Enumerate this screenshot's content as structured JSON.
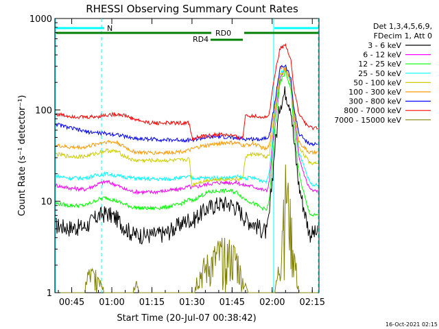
{
  "chart_data": {
    "type": "line",
    "title": "RHESSI Observing Summary Count Rates",
    "xlabel": "Start Time (20-Jul-07 00:38:42)",
    "ylabel": "Count Rate (s⁻¹ detector⁻¹)",
    "y_scale": "log",
    "ylim": [
      1,
      1000
    ],
    "xlim_minutes": [
      38.7,
      137.5
    ],
    "x_ticks": [
      {
        "label": "00:45",
        "min": 45
      },
      {
        "label": "01:00",
        "min": 60
      },
      {
        "label": "01:15",
        "min": 75
      },
      {
        "label": "01:30",
        "min": 90
      },
      {
        "label": "01:45",
        "min": 105
      },
      {
        "label": "02:00",
        "min": 120
      },
      {
        "label": "02:15",
        "min": 135
      }
    ],
    "y_ticks": [
      {
        "label": "1",
        "value": 1
      },
      {
        "label": "10",
        "value": 10
      },
      {
        "label": "100",
        "value": 100
      },
      {
        "label": "1000",
        "value": 1000
      }
    ],
    "legend_header": [
      "Det 1,3,4,5,6,9,",
      "FDecim 1, Att 0"
    ],
    "legend_position": "right",
    "series": [
      {
        "name": "3 - 6 keV",
        "color": "#000000",
        "x": [
          39,
          44,
          50,
          55,
          58,
          62,
          65,
          68,
          72,
          75,
          80,
          85,
          89,
          90,
          92,
          96,
          100,
          104,
          107,
          109,
          110,
          113,
          116,
          118,
          119,
          121,
          123,
          125,
          127,
          128,
          130,
          133,
          134,
          135,
          137
        ],
        "y": [
          5.5,
          5.2,
          5.3,
          7.0,
          7.5,
          6.5,
          5.2,
          4.4,
          4.3,
          4.3,
          4.5,
          5.5,
          6.5,
          6.0,
          7.0,
          8.5,
          9.5,
          9.5,
          8.5,
          7.2,
          6.5,
          5.8,
          5.0,
          4.6,
          7.5,
          40,
          120,
          160,
          110,
          50,
          15,
          6.0,
          4.5,
          4.5,
          4.5
        ]
      },
      {
        "name": "6 - 12 keV",
        "color": "#ff00ff",
        "x": [
          39,
          44,
          50,
          55,
          58,
          62,
          65,
          68,
          72,
          75,
          80,
          85,
          89,
          90,
          92,
          96,
          100,
          104,
          107,
          109,
          110,
          113,
          116,
          118,
          119,
          121,
          123,
          125,
          127,
          128,
          130,
          133,
          134,
          135,
          137
        ],
        "y": [
          15,
          14,
          13.5,
          15.5,
          16.5,
          15,
          13.5,
          12.8,
          12.6,
          12.6,
          13,
          13.5,
          14.5,
          14,
          14.5,
          15.5,
          16,
          16,
          16,
          15,
          15,
          14.5,
          13.5,
          13,
          17,
          80,
          220,
          290,
          200,
          90,
          30,
          16,
          14,
          13,
          13
        ]
      },
      {
        "name": "12 - 25 keV",
        "color": "#00ff00",
        "x": [
          39,
          44,
          50,
          55,
          58,
          62,
          65,
          68,
          72,
          75,
          80,
          85,
          89,
          90,
          92,
          96,
          100,
          104,
          107,
          109,
          110,
          113,
          116,
          118,
          119,
          121,
          123,
          125,
          127,
          128,
          130,
          133,
          134,
          135,
          137
        ],
        "y": [
          9.5,
          9.0,
          9.0,
          10.5,
          11,
          10,
          9.2,
          8.6,
          8.4,
          8.4,
          8.6,
          9.2,
          10.5,
          10,
          11,
          12.5,
          13,
          13,
          12.5,
          11,
          10.5,
          9.5,
          8.5,
          8.0,
          11,
          60,
          200,
          260,
          170,
          70,
          20,
          9.0,
          7.5,
          7.0,
          7.0
        ]
      },
      {
        "name": "25 - 50 keV",
        "color": "#00ffff",
        "x": [
          39,
          44,
          50,
          55,
          58,
          62,
          65,
          68,
          72,
          75,
          80,
          85,
          89,
          90,
          92,
          96,
          100,
          104,
          107,
          109,
          110,
          113,
          116,
          118,
          119,
          121,
          123,
          125,
          127,
          128,
          130,
          133,
          134,
          135,
          137
        ],
        "y": [
          19,
          18,
          18,
          19.5,
          20,
          19,
          18.5,
          18,
          17.5,
          17.5,
          17.5,
          18,
          18.5,
          18,
          18,
          18,
          18,
          18,
          18.5,
          18,
          18,
          18,
          17,
          16.5,
          22,
          90,
          250,
          280,
          210,
          100,
          35,
          19,
          16,
          15,
          15
        ]
      },
      {
        "name": "50 - 100 keV",
        "color": "#cccc00",
        "x": [
          39,
          44,
          50,
          55,
          58,
          62,
          65,
          68,
          72,
          75,
          80,
          85,
          89,
          90,
          92,
          96,
          100,
          104,
          107,
          109,
          110,
          113,
          116,
          118,
          119,
          121,
          123,
          125,
          127,
          128,
          130,
          133,
          134,
          135,
          137
        ],
        "y": [
          33,
          31,
          31,
          34,
          36,
          35,
          31,
          28,
          28,
          28,
          28,
          28,
          29,
          15,
          16,
          17,
          17.5,
          17.5,
          17.5,
          17.5,
          31,
          33,
          32,
          30,
          33,
          90,
          240,
          270,
          200,
          90,
          40,
          29,
          27,
          26,
          27
        ]
      },
      {
        "name": "100 - 300 keV",
        "color": "#ff9900",
        "x": [
          39,
          44,
          50,
          55,
          58,
          62,
          65,
          68,
          72,
          75,
          80,
          85,
          89,
          90,
          92,
          96,
          100,
          104,
          107,
          109,
          110,
          113,
          116,
          118,
          119,
          121,
          123,
          125,
          127,
          128,
          130,
          133,
          134,
          135,
          137
        ],
        "y": [
          41,
          39,
          39,
          43,
          45,
          44,
          39,
          35,
          34,
          34,
          34,
          35,
          36,
          37,
          39,
          41,
          43,
          44,
          43,
          41,
          41,
          43,
          39,
          37,
          42,
          110,
          300,
          280,
          200,
          100,
          45,
          36,
          34,
          34,
          34
        ]
      },
      {
        "name": "300 - 800 keV",
        "color": "#0000ff",
        "x": [
          39,
          44,
          50,
          55,
          58,
          62,
          65,
          68,
          72,
          75,
          80,
          85,
          89,
          90,
          92,
          96,
          100,
          104,
          107,
          109,
          110,
          113,
          116,
          118,
          119,
          121,
          123,
          125,
          127,
          128,
          130,
          133,
          134,
          135,
          137
        ],
        "y": [
          70,
          64,
          58,
          56,
          55,
          54,
          51,
          49,
          48,
          48,
          47,
          47,
          47,
          47,
          48,
          50,
          51,
          50,
          49,
          48,
          48,
          48,
          48,
          50,
          54,
          120,
          300,
          300,
          220,
          110,
          55,
          45,
          43,
          42,
          42
        ]
      },
      {
        "name": "800 - 7000 keV",
        "color": "#ff0000",
        "x": [
          39,
          44,
          50,
          55,
          58,
          62,
          65,
          68,
          72,
          75,
          80,
          85,
          89,
          90,
          92,
          96,
          100,
          104,
          107,
          109,
          110,
          113,
          116,
          118,
          119,
          121,
          123,
          125,
          127,
          128,
          130,
          133,
          134,
          135,
          137
        ],
        "y": [
          90,
          86,
          83,
          85,
          88,
          90,
          87,
          80,
          74,
          72,
          72,
          72,
          72,
          49,
          50,
          52,
          54,
          53,
          50,
          49,
          88,
          86,
          84,
          82,
          95,
          250,
          480,
          510,
          360,
          180,
          90,
          68,
          64,
          63,
          64
        ]
      },
      {
        "name": "7000 - 15000 keV",
        "color": "#808000",
        "x": [
          39,
          45,
          48,
          50,
          50.5,
          56,
          57,
          60,
          62,
          64,
          66,
          68,
          69,
          70,
          90,
          91,
          92,
          96,
          100,
          104,
          107,
          108,
          111,
          113,
          115,
          118,
          121,
          123,
          124,
          125,
          126,
          128,
          130,
          133,
          137
        ],
        "y": [
          1,
          1,
          1,
          1,
          1.8,
          1.8,
          1,
          1,
          1,
          1,
          1,
          1,
          1.8,
          1,
          1,
          1,
          1.8,
          2.5,
          3.5,
          3.5,
          3,
          2,
          1,
          1,
          1,
          1,
          1,
          3,
          12,
          22,
          15,
          4,
          1,
          1,
          1
        ]
      }
    ]
  },
  "state_bars": {
    "N": {
      "label": "N",
      "color": "#00ffff"
    },
    "RD0": {
      "label": "RD0",
      "color": "#008000"
    },
    "RD4": {
      "label": "RD4",
      "color": "#008000"
    }
  },
  "footer_timestamp": "16-Oct-2021 02:15"
}
